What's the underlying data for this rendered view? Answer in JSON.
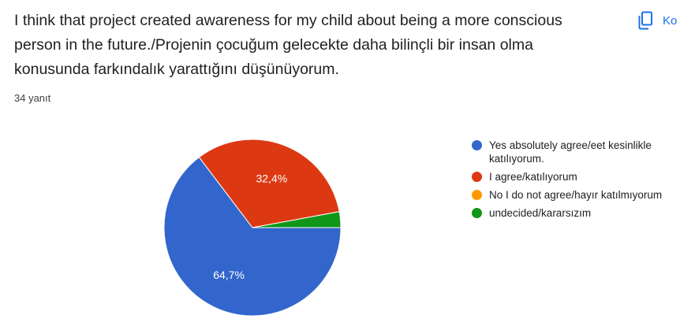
{
  "question": {
    "title": "I think that project created awareness for my child about being a more conscious person in the future./Projenin çocuğum gelecekte daha bilinçli bir insan olma konusunda farkındalık yarattığını düşünüyorum.",
    "response_count": "34 yanıt"
  },
  "toolbar": {
    "copy_label": "Ko"
  },
  "icons": {
    "copy": "copy-icon"
  },
  "chart_data": {
    "type": "pie",
    "slices": [
      {
        "label": "Yes absolutely agree/eet kesinlikle katılıyorum.",
        "value": 64.7,
        "color": "#3366cc",
        "data_label": "64,7%"
      },
      {
        "label": "I agree/katılıyorum",
        "value": 32.4,
        "color": "#dc3912",
        "data_label": "32,4%"
      },
      {
        "label": "No I do not agree/hayır katılmıyorum",
        "value": 0,
        "color": "#ff9900",
        "data_label": ""
      },
      {
        "label": "undecided/kararsızım",
        "value": 2.9,
        "color": "#109618",
        "data_label": ""
      }
    ],
    "legend_position": "right"
  }
}
